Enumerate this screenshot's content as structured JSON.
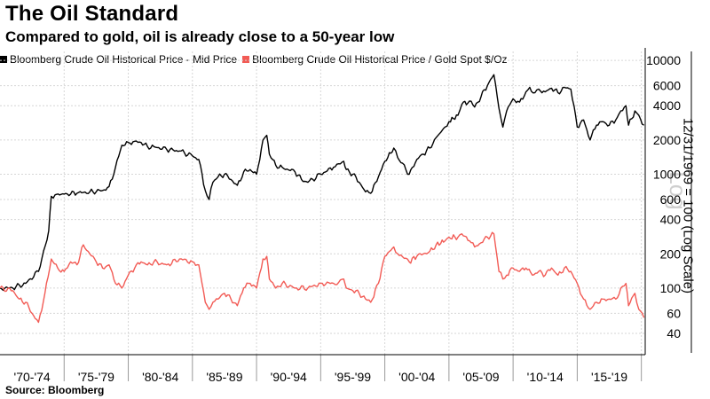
{
  "title": "The Oil Standard",
  "subtitle": "Compared to gold, oil is already close to a 50-year low",
  "legend": [
    {
      "label": "Bloomberg Crude Oil Historical Price - Mid Price",
      "color": "#000000"
    },
    {
      "label": "Bloomberg Crude Oil Historical Price / Gold Spot $/Oz",
      "color": "#f25b55"
    }
  ],
  "source": "Source: Bloomberg",
  "chart_data": {
    "type": "line",
    "title": "The Oil Standard",
    "ylabel": "12/31/1969 = 100 (Log Scale)",
    "yscale": "log",
    "ylim": [
      26,
      12000
    ],
    "xlim": [
      1970.0,
      2020.3
    ],
    "xlabel": "",
    "grid": true,
    "legend_position": "top-left",
    "watermark": "Log",
    "categories": [
      "'70-'74",
      "'75-'79",
      "'80-'84",
      "'85-'89",
      "'90-'94",
      "'95-'99",
      "'00-'04",
      "'05-'09",
      "'10-'14",
      "'15-'19"
    ],
    "yticks": [
      40,
      60,
      100,
      200,
      400,
      600,
      1000,
      2000,
      4000,
      6000,
      10000
    ],
    "series": [
      {
        "name": "Bloomberg Crude Oil Historical Price - Mid Price",
        "color": "#000000",
        "x": [
          1970.0,
          1971.0,
          1972.0,
          1973.0,
          1973.8,
          1974.0,
          1974.3,
          1975.0,
          1976.0,
          1977.0,
          1978.0,
          1978.5,
          1979.0,
          1979.5,
          1980.0,
          1980.5,
          1981.0,
          1981.5,
          1982.0,
          1983.0,
          1984.0,
          1985.0,
          1985.5,
          1986.0,
          1986.3,
          1986.6,
          1987.0,
          1987.5,
          1988.0,
          1988.5,
          1989.0,
          1989.5,
          1990.0,
          1990.5,
          1990.8,
          1991.0,
          1991.5,
          1992.0,
          1993.0,
          1993.5,
          1994.0,
          1995.0,
          1996.0,
          1996.8,
          1997.0,
          1997.5,
          1998.0,
          1998.5,
          1998.9,
          1999.5,
          2000.0,
          2000.7,
          2001.0,
          2001.9,
          2002.5,
          2003.0,
          2003.5,
          2004.0,
          2004.7,
          2005.0,
          2005.7,
          2006.0,
          2006.6,
          2007.0,
          2007.5,
          2008.0,
          2008.5,
          2008.9,
          2009.2,
          2009.5,
          2010.0,
          2010.5,
          2011.0,
          2011.3,
          2011.7,
          2012.0,
          2012.5,
          2013.0,
          2013.5,
          2014.0,
          2014.5,
          2015.0,
          2015.5,
          2016.0,
          2016.5,
          2017.0,
          2017.5,
          2018.0,
          2018.4,
          2018.8,
          2019.0,
          2019.5,
          2019.8,
          2020.2
        ],
        "values": [
          100,
          100,
          110,
          140,
          320,
          640,
          660,
          670,
          680,
          700,
          720,
          780,
          1150,
          1800,
          1900,
          1950,
          1900,
          1750,
          1750,
          1650,
          1600,
          1450,
          1350,
          720,
          600,
          850,
          950,
          1000,
          900,
          800,
          1050,
          1100,
          1000,
          2000,
          2200,
          1500,
          1200,
          1150,
          1050,
          900,
          850,
          1000,
          1150,
          1300,
          1100,
          1000,
          850,
          700,
          680,
          950,
          1300,
          1700,
          1400,
          1000,
          1350,
          1500,
          1700,
          2100,
          2600,
          2900,
          3300,
          4100,
          4400,
          3900,
          4800,
          6000,
          7500,
          3800,
          2600,
          3600,
          4600,
          4300,
          5300,
          5800,
          5200,
          5600,
          5300,
          5700,
          5200,
          5800,
          5600,
          2600,
          3000,
          2000,
          2700,
          2900,
          2700,
          3000,
          3600,
          4000,
          2700,
          3600,
          3300,
          2700
        ]
      },
      {
        "name": "Bloomberg Crude Oil Historical Price / Gold Spot $/Oz",
        "color": "#f25b55",
        "x": [
          1970.0,
          1971.0,
          1971.5,
          1972.0,
          1972.5,
          1973.0,
          1973.5,
          1974.0,
          1974.5,
          1975.0,
          1975.5,
          1976.0,
          1976.5,
          1977.0,
          1977.5,
          1978.0,
          1978.5,
          1979.0,
          1979.5,
          1980.0,
          1980.5,
          1981.0,
          1981.5,
          1982.0,
          1983.0,
          1984.0,
          1985.0,
          1985.5,
          1986.0,
          1986.3,
          1986.6,
          1987.0,
          1987.5,
          1988.0,
          1988.5,
          1989.0,
          1989.5,
          1990.0,
          1990.5,
          1990.8,
          1991.0,
          1991.5,
          1992.0,
          1993.0,
          1994.0,
          1995.0,
          1996.0,
          1996.8,
          1997.0,
          1997.5,
          1998.0,
          1998.5,
          1998.9,
          1999.5,
          2000.0,
          2000.7,
          2001.0,
          2001.9,
          2002.5,
          2003.0,
          2003.5,
          2004.0,
          2004.7,
          2005.0,
          2005.7,
          2006.0,
          2006.6,
          2007.0,
          2007.5,
          2008.0,
          2008.5,
          2008.9,
          2009.2,
          2009.5,
          2010.0,
          2010.5,
          2011.0,
          2011.5,
          2012.0,
          2012.5,
          2013.0,
          2013.5,
          2014.0,
          2014.5,
          2015.0,
          2015.5,
          2016.0,
          2016.5,
          2017.0,
          2017.5,
          2018.0,
          2018.4,
          2018.8,
          2019.0,
          2019.5,
          2019.8,
          2020.2
        ],
        "values": [
          100,
          95,
          80,
          75,
          60,
          50,
          90,
          180,
          150,
          140,
          170,
          160,
          240,
          200,
          170,
          150,
          160,
          110,
          100,
          130,
          150,
          170,
          160,
          170,
          160,
          180,
          170,
          160,
          75,
          65,
          75,
          80,
          90,
          80,
          70,
          100,
          110,
          100,
          180,
          190,
          120,
          100,
          110,
          100,
          100,
          110,
          110,
          120,
          100,
          95,
          90,
          80,
          75,
          110,
          190,
          230,
          200,
          170,
          190,
          200,
          210,
          240,
          260,
          280,
          280,
          300,
          260,
          230,
          250,
          280,
          300,
          140,
          120,
          130,
          150,
          140,
          150,
          130,
          140,
          130,
          150,
          130,
          150,
          140,
          110,
          80,
          65,
          75,
          80,
          80,
          80,
          100,
          110,
          70,
          90,
          65,
          55
        ]
      }
    ]
  }
}
